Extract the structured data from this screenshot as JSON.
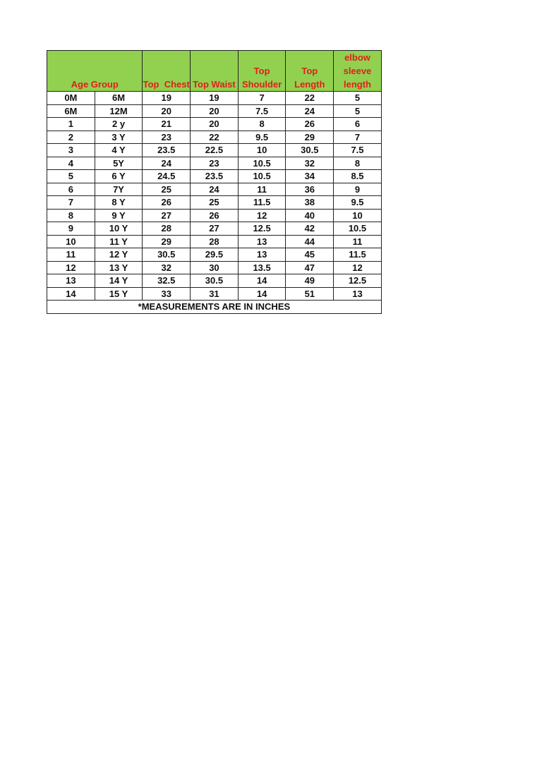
{
  "headers": {
    "age_group": "Age Group",
    "top_chest": "Top  Chest",
    "top_waist": "Top Waist",
    "top_shoulder": [
      "Top",
      "Shoulder"
    ],
    "top_length": [
      "Top",
      "Length"
    ],
    "elbow_sleeve_length": [
      "elbow",
      "sleeve",
      "length"
    ]
  },
  "rows": [
    [
      "0M",
      "6M",
      "19",
      "19",
      "7",
      "22",
      "5"
    ],
    [
      "6M",
      "12M",
      "20",
      "20",
      "7.5",
      "24",
      "5"
    ],
    [
      "1",
      "2 y",
      "21",
      "20",
      "8",
      "26",
      "6"
    ],
    [
      "2",
      "3 Y",
      "23",
      "22",
      "9.5",
      "29",
      "7"
    ],
    [
      "3",
      "4 Y",
      "23.5",
      "22.5",
      "10",
      "30.5",
      "7.5"
    ],
    [
      "4",
      "5Y",
      "24",
      "23",
      "10.5",
      "32",
      "8"
    ],
    [
      "5",
      "6 Y",
      "24.5",
      "23.5",
      "10.5",
      "34",
      "8.5"
    ],
    [
      "6",
      "7Y",
      "25",
      "24",
      "11",
      "36",
      "9"
    ],
    [
      "7",
      "8 Y",
      "26",
      "25",
      "11.5",
      "38",
      "9.5"
    ],
    [
      "8",
      "9 Y",
      "27",
      "26",
      "12",
      "40",
      "10"
    ],
    [
      "9",
      "10 Y",
      "28",
      "27",
      "12.5",
      "42",
      "10.5"
    ],
    [
      "10",
      "11 Y",
      "29",
      "28",
      "13",
      "44",
      "11"
    ],
    [
      "11",
      "12 Y",
      "30.5",
      "29.5",
      "13",
      "45",
      "11.5"
    ],
    [
      "12",
      "13 Y",
      "32",
      "30",
      "13.5",
      "47",
      "12"
    ],
    [
      "13",
      "14 Y",
      "32.5",
      "30.5",
      "14",
      "49",
      "12.5"
    ],
    [
      "14",
      "15 Y",
      "33",
      "31",
      "14",
      "51",
      "13"
    ]
  ],
  "footer": "*MEASUREMENTS ARE IN INCHES",
  "colors": {
    "header_bg": "#92d050",
    "header_text": "#e0201b"
  }
}
